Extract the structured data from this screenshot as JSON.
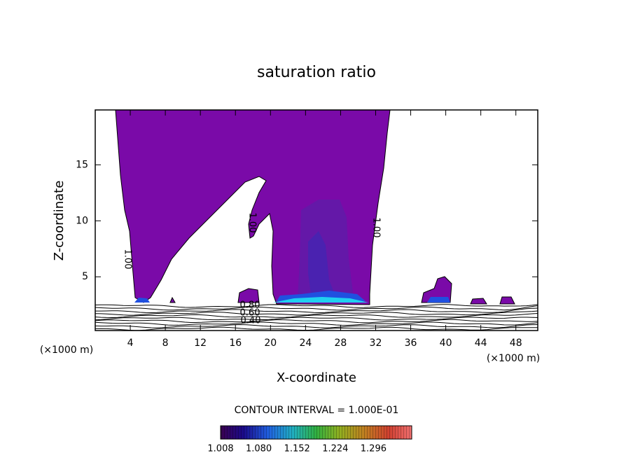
{
  "chart_data": {
    "type": "contour",
    "title": "saturation ratio",
    "x_label": "X-coordinate",
    "y_label": "Z-coordinate",
    "x_unit": "(×1000 m)",
    "x_unit_right": "(×1000 m)",
    "xlim": [
      0,
      50.5
    ],
    "xticks": [
      4,
      8,
      12,
      16,
      20,
      24,
      28,
      32,
      36,
      40,
      44,
      48
    ],
    "ylim": [
      0.2,
      19.9
    ],
    "yticks": [
      5,
      10,
      15
    ],
    "contour_labels": [
      {
        "value": 1,
        "label": "1.00"
      },
      {
        "value": 1,
        "label": "1.00"
      },
      {
        "value": 1,
        "label": "1.00"
      },
      {
        "value": 0.8,
        "label": "0.80"
      },
      {
        "value": 0.6,
        "label": "0.60"
      },
      {
        "value": 0.4,
        "label": "0.40"
      }
    ],
    "contour_interval": "CONTOUR INTERVAL = 1.000E-01",
    "clim": [
      1.008,
      1.368
    ],
    "cticks": [
      1.008,
      {
        "value": 1.08,
        "label": "1.080"
      },
      1.152,
      1.224,
      1.296
    ]
  }
}
